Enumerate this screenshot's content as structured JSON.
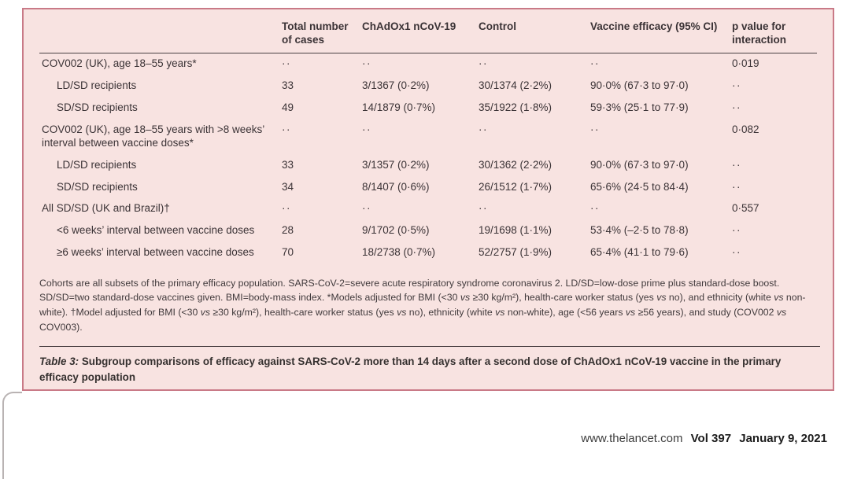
{
  "table": {
    "headers": [
      "",
      "Total number of cases",
      "ChAdOx1 nCoV-19",
      "Control",
      "Vaccine efficacy (95% CI)",
      "p value for interaction"
    ],
    "rows": [
      {
        "label": "COV002 (UK), age 18–55 years*",
        "indent": 0,
        "values": [
          "··",
          "··",
          "··",
          "··",
          "0·019"
        ]
      },
      {
        "label": "LD/SD recipients",
        "indent": 1,
        "values": [
          "33",
          "3/1367 (0·2%)",
          "30/1374 (2·2%)",
          "90·0% (67·3 to 97·0)",
          "··"
        ]
      },
      {
        "label": "SD/SD recipients",
        "indent": 1,
        "values": [
          "49",
          "14/1879 (0·7%)",
          "35/1922 (1·8%)",
          "59·3% (25·1 to 77·9)",
          "··"
        ]
      },
      {
        "label": "COV002 (UK), age 18–55 years with >8 weeks’ interval between vaccine doses*",
        "indent": 0,
        "values": [
          "··",
          "··",
          "··",
          "··",
          "0·082"
        ]
      },
      {
        "label": "LD/SD recipients",
        "indent": 1,
        "values": [
          "33",
          "3/1357 (0·2%)",
          "30/1362 (2·2%)",
          "90·0% (67·3 to 97·0)",
          "··"
        ]
      },
      {
        "label": "SD/SD recipients",
        "indent": 1,
        "values": [
          "34",
          "8/1407 (0·6%)",
          "26/1512 (1·7%)",
          "65·6% (24·5 to 84·4)",
          "··"
        ]
      },
      {
        "label": "All SD/SD (UK and Brazil)†",
        "indent": 0,
        "values": [
          "··",
          "··",
          "··",
          "··",
          "0·557"
        ]
      },
      {
        "label": "<6 weeks’ interval between vaccine doses",
        "indent": 1,
        "values": [
          "28",
          "9/1702 (0·5%)",
          "19/1698 (1·1%)",
          "53·4% (–2·5 to 78·8)",
          "··"
        ]
      },
      {
        "label": "≥6 weeks’ interval between vaccine doses",
        "indent": 1,
        "values": [
          "70",
          "18/2738 (0·7%)",
          "52/2757 (1·9%)",
          "65·4% (41·1 to 79·6)",
          "··"
        ]
      }
    ]
  },
  "footnote": {
    "segments": [
      {
        "text": "Cohorts are all subsets of the primary efficacy population. SARS-CoV-2=severe acute respiratory syndrome coronavirus 2. LD/SD=low-dose prime plus standard-dose boost. SD/SD=two standard-dose vaccines given. BMI=body-mass index. *Models adjusted for BMI (<30 ",
        "italic": false
      },
      {
        "text": "vs",
        "italic": true
      },
      {
        "text": " ≥30 kg/m²), health-care worker status (yes ",
        "italic": false
      },
      {
        "text": "vs",
        "italic": true
      },
      {
        "text": " no), and ethnicity (white ",
        "italic": false
      },
      {
        "text": "vs",
        "italic": true
      },
      {
        "text": " non-white). †Model adjusted for BMI (<30 ",
        "italic": false
      },
      {
        "text": "vs",
        "italic": true
      },
      {
        "text": " ≥30 kg/m²), health-care worker status (yes ",
        "italic": false
      },
      {
        "text": "vs",
        "italic": true
      },
      {
        "text": " no), ethnicity (white ",
        "italic": false
      },
      {
        "text": "vs",
        "italic": true
      },
      {
        "text": " non-white), age (<56 years ",
        "italic": false
      },
      {
        "text": "vs",
        "italic": true
      },
      {
        "text": " ≥56 years), and study (COV002 ",
        "italic": false
      },
      {
        "text": "vs",
        "italic": true
      },
      {
        "text": " COV003).",
        "italic": false
      }
    ]
  },
  "caption": {
    "lead": "Table 3:",
    "text": " Subgroup comparisons of efficacy against SARS-CoV-2 more than 14 days after a second dose of ChAdOx1 nCoV-19 vaccine in the primary efficacy population"
  },
  "footer": {
    "site": "www.thelancet.com",
    "volume": "Vol 397",
    "date": "January 9, 2021"
  },
  "colors": {
    "panel_bg": "#f8e3e1",
    "panel_border": "#c97a87",
    "rule": "#4a4042",
    "text": "#3b3336"
  }
}
